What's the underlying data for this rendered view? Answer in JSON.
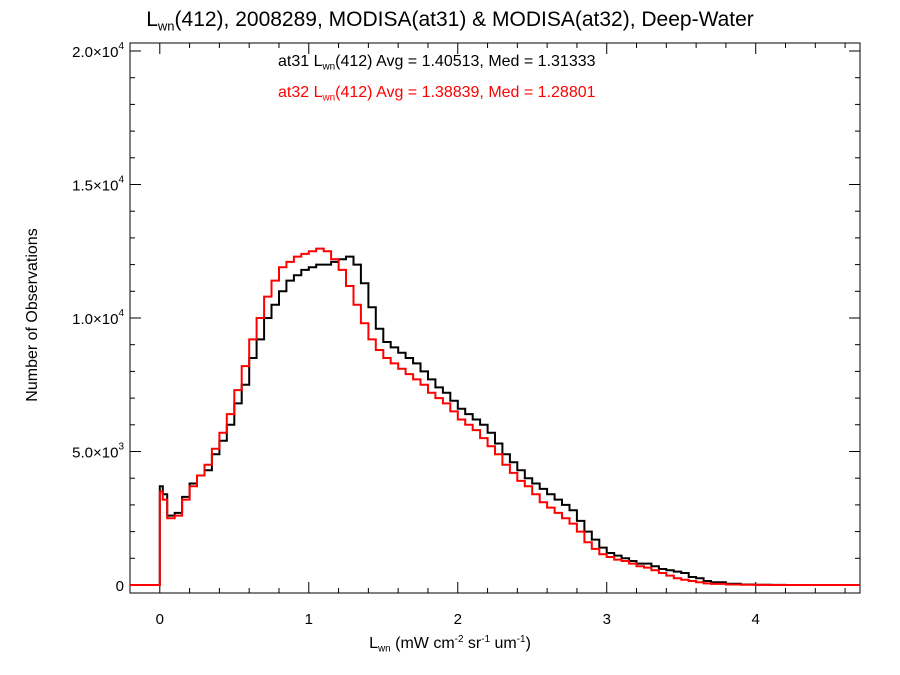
{
  "chart_data": {
    "type": "line",
    "title": {
      "prefix": "L",
      "sub": "wn",
      "rest": "(412), 2008289, MODISA(at31) & MODISA(at32), Deep-Water"
    },
    "ylabel": "Number of Observations",
    "xlabel": {
      "prefix": "L",
      "sub": "wn",
      "open": " (mW cm",
      "e1": "-2",
      "mid1": " sr",
      "e2": "-1",
      "mid2": " um",
      "e3": "-1",
      "close": ")"
    },
    "xlim": [
      -0.2,
      4.7
    ],
    "ylim": [
      -300,
      20300
    ],
    "x_ticks": [
      0,
      1,
      2,
      3,
      4
    ],
    "y_ticks": [
      {
        "value": 0,
        "label": "0",
        "exp": ""
      },
      {
        "value": 5000,
        "label": "5.0×10",
        "exp": "3"
      },
      {
        "value": 10000,
        "label": "1.0×10",
        "exp": "4"
      },
      {
        "value": 15000,
        "label": "1.5×10",
        "exp": "4"
      },
      {
        "value": 20000,
        "label": "2.0×10",
        "exp": "4"
      }
    ],
    "annotations": [
      {
        "series": "at31",
        "prefix": "at31 L",
        "sub": "wn",
        "rest": "(412) Avg = 1.40513, Med = 1.31333",
        "color": "#000000"
      },
      {
        "series": "at32",
        "prefix": "at32 L",
        "sub": "wn",
        "rest": "(412) Avg = 1.38839, Med = 1.28801",
        "color": "#ff0000"
      }
    ],
    "series": [
      {
        "color": "#000000",
        "x": [
          -0.2,
          -0.01,
          0.0,
          0.02,
          0.05,
          0.1,
          0.15,
          0.2,
          0.25,
          0.3,
          0.35,
          0.4,
          0.45,
          0.5,
          0.55,
          0.6,
          0.65,
          0.7,
          0.75,
          0.8,
          0.85,
          0.9,
          0.95,
          1.0,
          1.05,
          1.1,
          1.15,
          1.2,
          1.25,
          1.3,
          1.35,
          1.4,
          1.45,
          1.5,
          1.55,
          1.6,
          1.65,
          1.7,
          1.75,
          1.8,
          1.85,
          1.9,
          1.95,
          2.0,
          2.05,
          2.1,
          2.15,
          2.2,
          2.25,
          2.3,
          2.35,
          2.4,
          2.45,
          2.5,
          2.55,
          2.6,
          2.65,
          2.7,
          2.75,
          2.8,
          2.85,
          2.9,
          2.95,
          3.0,
          3.05,
          3.1,
          3.15,
          3.2,
          3.25,
          3.3,
          3.35,
          3.4,
          3.45,
          3.5,
          3.55,
          3.6,
          3.65,
          3.7,
          3.8,
          3.9,
          4.0,
          4.1,
          4.2,
          4.3,
          4.4,
          4.5,
          4.6,
          4.7
        ],
        "y": [
          0,
          0,
          3700,
          3400,
          2600,
          2700,
          3300,
          3800,
          4100,
          4300,
          4900,
          5400,
          6000,
          6800,
          7500,
          8500,
          9200,
          10000,
          10500,
          11000,
          11400,
          11600,
          11800,
          11900,
          12000,
          12000,
          12100,
          12200,
          12300,
          12000,
          11300,
          10400,
          9600,
          9100,
          8900,
          8700,
          8500,
          8300,
          8000,
          7700,
          7400,
          7200,
          6900,
          6600,
          6400,
          6200,
          6000,
          5700,
          5300,
          4900,
          4600,
          4300,
          4000,
          3800,
          3600,
          3400,
          3200,
          3000,
          2800,
          2400,
          2000,
          1700,
          1400,
          1200,
          1100,
          1000,
          900,
          800,
          800,
          700,
          600,
          550,
          500,
          450,
          300,
          250,
          150,
          100,
          50,
          20,
          10,
          5,
          0,
          0,
          0,
          0,
          0,
          0
        ]
      },
      {
        "color": "#ff0000",
        "x": [
          -0.2,
          -0.01,
          0.0,
          0.02,
          0.05,
          0.1,
          0.15,
          0.2,
          0.25,
          0.3,
          0.35,
          0.4,
          0.45,
          0.5,
          0.55,
          0.6,
          0.65,
          0.7,
          0.75,
          0.8,
          0.85,
          0.9,
          0.95,
          1.0,
          1.05,
          1.1,
          1.15,
          1.2,
          1.25,
          1.3,
          1.35,
          1.4,
          1.45,
          1.5,
          1.55,
          1.6,
          1.65,
          1.7,
          1.75,
          1.8,
          1.85,
          1.9,
          1.95,
          2.0,
          2.05,
          2.1,
          2.15,
          2.2,
          2.25,
          2.3,
          2.35,
          2.4,
          2.45,
          2.5,
          2.55,
          2.6,
          2.65,
          2.7,
          2.75,
          2.8,
          2.85,
          2.9,
          2.95,
          3.0,
          3.05,
          3.1,
          3.15,
          3.2,
          3.25,
          3.3,
          3.35,
          3.4,
          3.45,
          3.5,
          3.55,
          3.6,
          3.65,
          3.7,
          3.8,
          3.9,
          4.0,
          4.1,
          4.2,
          4.3,
          4.4,
          4.5,
          4.6,
          4.7
        ],
        "y": [
          0,
          0,
          3500,
          3200,
          2500,
          2600,
          3200,
          3700,
          4100,
          4500,
          5100,
          5700,
          6400,
          7300,
          8200,
          9200,
          10000,
          10800,
          11400,
          11900,
          12100,
          12300,
          12400,
          12500,
          12600,
          12500,
          12200,
          11800,
          11200,
          10500,
          9800,
          9200,
          8800,
          8500,
          8300,
          8100,
          7900,
          7700,
          7500,
          7200,
          7000,
          6800,
          6500,
          6200,
          6000,
          5800,
          5500,
          5200,
          4900,
          4500,
          4200,
          3900,
          3700,
          3400,
          3100,
          2900,
          2700,
          2500,
          2300,
          2000,
          1600,
          1350,
          1150,
          1050,
          950,
          900,
          800,
          700,
          650,
          550,
          450,
          350,
          250,
          200,
          150,
          100,
          60,
          40,
          20,
          10,
          5,
          0,
          0,
          0,
          0,
          0,
          0,
          0
        ]
      }
    ]
  }
}
